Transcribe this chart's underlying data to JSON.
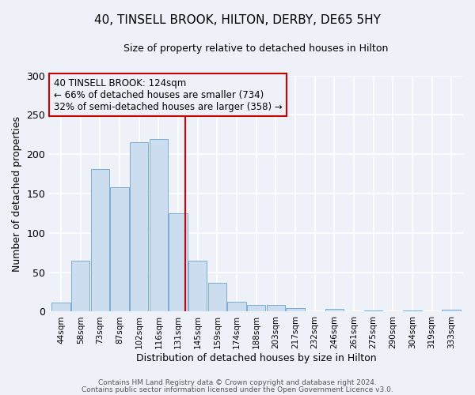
{
  "title": "40, TINSELL BROOK, HILTON, DERBY, DE65 5HY",
  "subtitle": "Size of property relative to detached houses in Hilton",
  "xlabel": "Distribution of detached houses by size in Hilton",
  "ylabel": "Number of detached properties",
  "bar_labels": [
    "44sqm",
    "58sqm",
    "73sqm",
    "87sqm",
    "102sqm",
    "116sqm",
    "131sqm",
    "145sqm",
    "159sqm",
    "174sqm",
    "188sqm",
    "203sqm",
    "217sqm",
    "232sqm",
    "246sqm",
    "261sqm",
    "275sqm",
    "290sqm",
    "304sqm",
    "319sqm",
    "333sqm"
  ],
  "bar_values": [
    12,
    65,
    181,
    158,
    215,
    219,
    125,
    65,
    37,
    13,
    8,
    8,
    4,
    0,
    3,
    0,
    1,
    0,
    1,
    0,
    2
  ],
  "bar_color": "#ccddf0",
  "bar_edgecolor": "#7aadd4",
  "vline_color": "#cc0000",
  "vline_x_index": 6,
  "annotation_text_line1": "40 TINSELL BROOK: 124sqm",
  "annotation_text_line2": "← 66% of detached houses are smaller (734)",
  "annotation_text_line3": "32% of semi-detached houses are larger (358) →",
  "annotation_box_color": "#cc0000",
  "ylim": [
    0,
    300
  ],
  "yticks": [
    0,
    50,
    100,
    150,
    200,
    250,
    300
  ],
  "footer1": "Contains HM Land Registry data © Crown copyright and database right 2024.",
  "footer2": "Contains public sector information licensed under the Open Government Licence v3.0.",
  "background_color": "#eef2f8",
  "grid_color": "#ffffff"
}
